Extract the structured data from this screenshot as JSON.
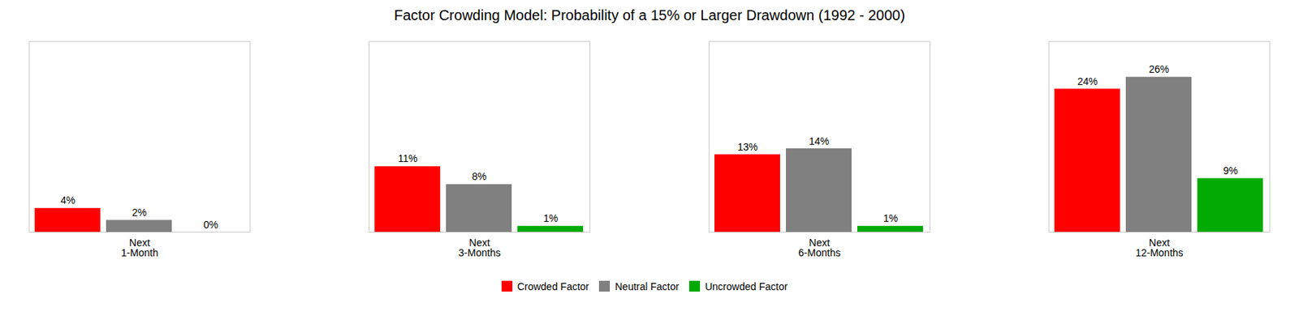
{
  "chart_data": {
    "type": "bar",
    "title": "Factor Crowding Model: Probability of a 15% or Larger Drawdown (1992 - 2000)",
    "categories": [
      "Next\n1-Month",
      "Next\n3-Months",
      "Next\n6-Months",
      "Next\n12-Months"
    ],
    "series": [
      {
        "name": "Crowded Factor",
        "color": "#FF0000",
        "values": [
          4,
          11,
          13,
          24
        ],
        "value_labels": [
          "4%",
          "11%",
          "13%",
          "24%"
        ]
      },
      {
        "name": "Neutral Factor",
        "color": "#808080",
        "values": [
          2,
          8,
          14,
          26
        ],
        "value_labels": [
          "2%",
          "8%",
          "14%",
          "26%"
        ]
      },
      {
        "name": "Uncrowded Factor",
        "color": "#00AA00",
        "values": [
          0,
          1,
          1,
          9
        ],
        "value_labels": [
          "0%",
          "1%",
          "1%",
          "9%"
        ]
      }
    ],
    "ylim": [
      0,
      32
    ],
    "grid": false,
    "legend": "bottom",
    "data_labels": true,
    "tick_labels": "x"
  }
}
